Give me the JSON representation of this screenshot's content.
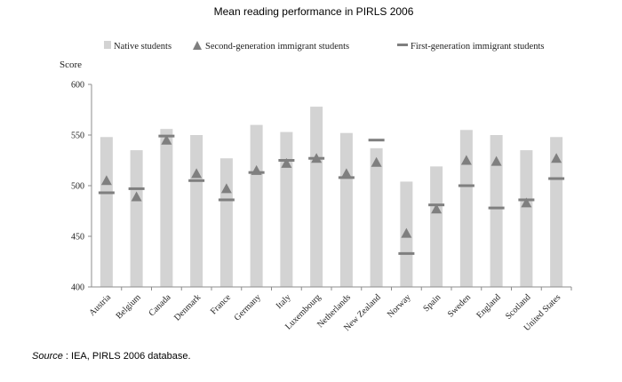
{
  "chart_data": {
    "type": "bar",
    "title": "Mean reading performance in PIRLS 2006",
    "ylabel": "Score",
    "xlabel": "",
    "ylim": [
      400,
      600
    ],
    "yticks": [
      400,
      450,
      500,
      550,
      600
    ],
    "grid": false,
    "legend_position": "top",
    "categories": [
      "Austria",
      "Belgium",
      "Canada",
      "Denmark",
      "France",
      "Germany",
      "Italy",
      "Luxembourg",
      "Netherlands",
      "New Zealand",
      "Norway",
      "Spain",
      "Sweden",
      "England",
      "Scotland",
      "United States"
    ],
    "series": [
      {
        "name": "Native students",
        "marker": "bar",
        "values": [
          548,
          535,
          556,
          550,
          527,
          560,
          553,
          578,
          552,
          537,
          504,
          519,
          555,
          550,
          535,
          548
        ]
      },
      {
        "name": "Second-generation immigrant students",
        "marker": "triangle",
        "values": [
          505,
          489,
          545,
          512,
          497,
          515,
          522,
          527,
          512,
          523,
          453,
          477,
          525,
          524,
          483,
          527
        ]
      },
      {
        "name": "First-generation immigrant students",
        "marker": "dash",
        "values": [
          493,
          497,
          549,
          505,
          486,
          513,
          525,
          527,
          508,
          545,
          433,
          481,
          500,
          478,
          486,
          507
        ]
      }
    ]
  },
  "source": {
    "label": "Source",
    "text": ": IEA, PIRLS 2006 database."
  },
  "colors": {
    "native": "#d3d3d3",
    "immigrant": "#7f7f7f",
    "axis": "#8c8c8c"
  }
}
